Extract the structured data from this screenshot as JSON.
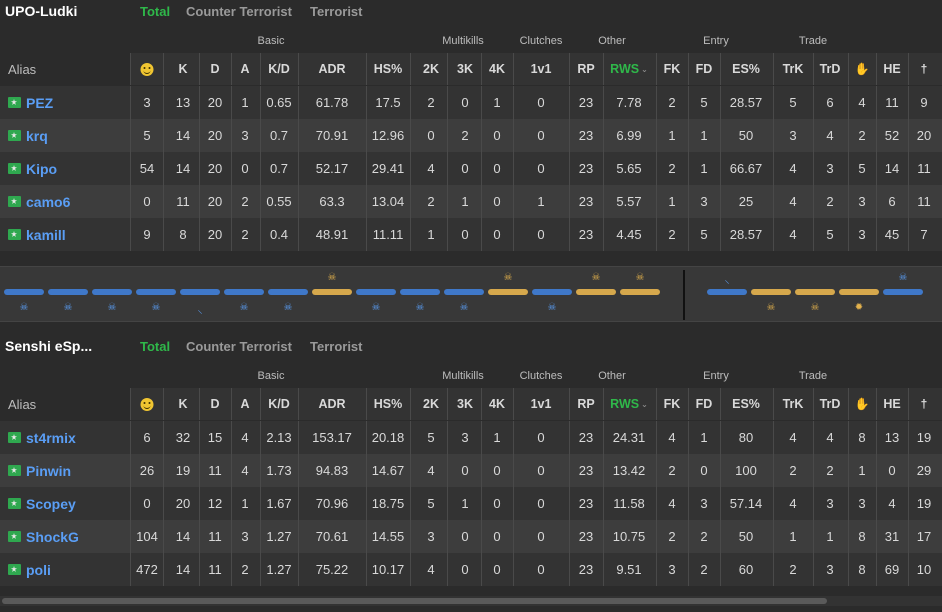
{
  "tabs": [
    "Total",
    "Counter Terrorist",
    "Terrorist"
  ],
  "groups": [
    "Basic",
    "Multikills",
    "Clutches",
    "Other",
    "Entry",
    "Trade"
  ],
  "columns": [
    "Alias",
    "",
    "K",
    "D",
    "A",
    "K/D",
    "ADR",
    "HS%",
    "2K",
    "3K",
    "4K",
    "1v1",
    "RP",
    "RWS",
    "FK",
    "FD",
    "ES%",
    "TrK",
    "TrD",
    "",
    "HE",
    ""
  ],
  "icons": {
    "smile": "smiley-icon",
    "flag": "flag-icon",
    "glove": "glove-icon",
    "pin": "pin-icon",
    "skull": "skull-icon",
    "defuse": "defuse-icon",
    "explode": "explosion-icon"
  },
  "colors": {
    "active_tab": "#2fb84a",
    "ct": "#3f78c9",
    "t": "#d6a84c",
    "alias": "#5a9ef5"
  },
  "teams": [
    {
      "name": "UPO-Ludki",
      "players": [
        {
          "alias": "PEZ",
          "stats": [
            "3",
            "13",
            "20",
            "1",
            "0.65",
            "61.78",
            "17.5",
            "2",
            "0",
            "1",
            "0",
            "23",
            "7.78",
            "2",
            "5",
            "28.57",
            "5",
            "6",
            "4",
            "11",
            "9"
          ]
        },
        {
          "alias": "krq",
          "stats": [
            "5",
            "14",
            "20",
            "3",
            "0.7",
            "70.91",
            "12.96",
            "0",
            "2",
            "0",
            "0",
            "23",
            "6.99",
            "1",
            "1",
            "50",
            "3",
            "4",
            "2",
            "52",
            "20"
          ]
        },
        {
          "alias": "Kipo",
          "stats": [
            "54",
            "14",
            "20",
            "0",
            "0.7",
            "52.17",
            "29.41",
            "4",
            "0",
            "0",
            "0",
            "23",
            "5.65",
            "2",
            "1",
            "66.67",
            "4",
            "3",
            "5",
            "14",
            "11"
          ]
        },
        {
          "alias": "camo6",
          "stats": [
            "0",
            "11",
            "20",
            "2",
            "0.55",
            "63.3",
            "13.04",
            "2",
            "1",
            "0",
            "1",
            "23",
            "5.57",
            "1",
            "3",
            "25",
            "4",
            "2",
            "3",
            "6",
            "11"
          ]
        },
        {
          "alias": "kamill",
          "stats": [
            "9",
            "8",
            "20",
            "2",
            "0.4",
            "48.91",
            "11.11",
            "1",
            "0",
            "0",
            "0",
            "23",
            "4.45",
            "2",
            "5",
            "28.57",
            "4",
            "5",
            "3",
            "45",
            "7"
          ]
        }
      ]
    },
    {
      "name": "Senshi eSp...",
      "players": [
        {
          "alias": "st4rmix",
          "stats": [
            "6",
            "32",
            "15",
            "4",
            "2.13",
            "153.17",
            "20.18",
            "5",
            "3",
            "1",
            "0",
            "23",
            "24.31",
            "4",
            "1",
            "80",
            "4",
            "4",
            "8",
            "13",
            "19"
          ]
        },
        {
          "alias": "Pinwin",
          "stats": [
            "26",
            "19",
            "11",
            "4",
            "1.73",
            "94.83",
            "14.67",
            "4",
            "0",
            "0",
            "0",
            "23",
            "13.42",
            "2",
            "0",
            "100",
            "2",
            "2",
            "1",
            "0",
            "29"
          ]
        },
        {
          "alias": "Scopey",
          "stats": [
            "0",
            "20",
            "12",
            "1",
            "1.67",
            "70.96",
            "18.75",
            "5",
            "1",
            "0",
            "0",
            "23",
            "11.58",
            "4",
            "3",
            "57.14",
            "4",
            "3",
            "3",
            "4",
            "19"
          ]
        },
        {
          "alias": "ShockG",
          "stats": [
            "104",
            "14",
            "11",
            "3",
            "1.27",
            "70.61",
            "14.55",
            "3",
            "0",
            "0",
            "0",
            "23",
            "10.75",
            "2",
            "2",
            "50",
            "1",
            "1",
            "8",
            "31",
            "17"
          ]
        },
        {
          "alias": "poli",
          "stats": [
            "472",
            "14",
            "11",
            "2",
            "1.27",
            "75.22",
            "10.17",
            "4",
            "0",
            "0",
            "0",
            "23",
            "9.51",
            "3",
            "2",
            "60",
            "2",
            "3",
            "8",
            "69",
            "10"
          ]
        }
      ]
    }
  ],
  "rounds": {
    "first_half": [
      {
        "side": "ct",
        "icon": "skull"
      },
      {
        "side": "ct",
        "icon": "skull"
      },
      {
        "side": "ct",
        "icon": "skull"
      },
      {
        "side": "ct",
        "icon": "skull"
      },
      {
        "side": "ct",
        "icon": "pin"
      },
      {
        "side": "ct",
        "icon": "skull"
      },
      {
        "side": "ct",
        "icon": "skull"
      },
      {
        "side": "t",
        "icon": "skull"
      },
      {
        "side": "ct",
        "icon": "skull"
      },
      {
        "side": "ct",
        "icon": "skull"
      },
      {
        "side": "ct",
        "icon": "skull"
      },
      {
        "side": "t",
        "icon": "skull"
      },
      {
        "side": "ct",
        "icon": "skull"
      },
      {
        "side": "t",
        "icon": "skull"
      },
      {
        "side": "t",
        "icon": "skull"
      }
    ],
    "second_half": [
      {
        "side": "ct",
        "icon": "pin"
      },
      {
        "side": "t",
        "icon": "skull"
      },
      {
        "side": "t",
        "icon": "skull"
      },
      {
        "side": "t",
        "icon": "explode"
      },
      {
        "side": "ct",
        "icon": "skull"
      }
    ]
  }
}
